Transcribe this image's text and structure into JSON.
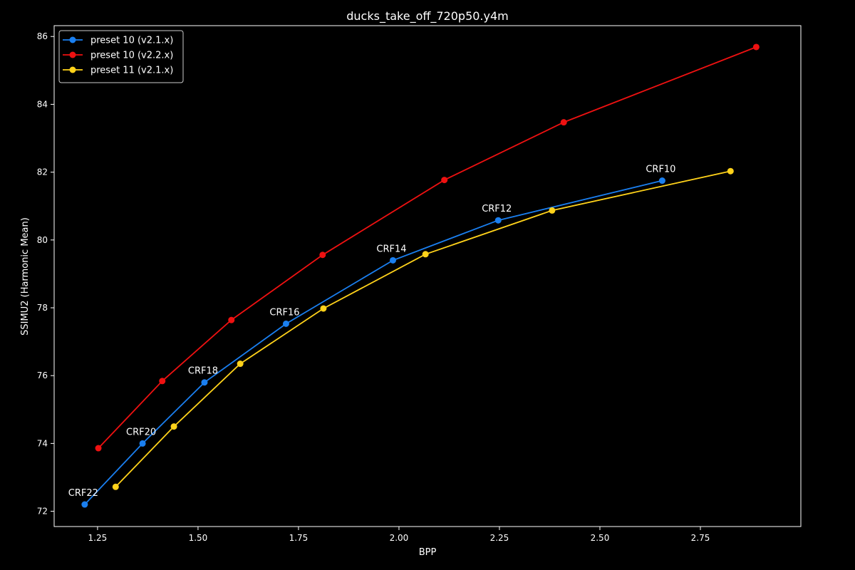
{
  "chart_data": {
    "type": "line",
    "title": "ducks_take_off_720p50.y4m",
    "xlabel": "BPP",
    "ylabel": "SSIMU2 (Harmonic Mean)",
    "xlim": [
      1.142,
      3.0
    ],
    "ylim": [
      71.55,
      86.32
    ],
    "xticks": [
      1.25,
      1.5,
      1.75,
      2.0,
      2.25,
      2.5,
      2.75
    ],
    "xtick_labels": [
      "1.25",
      "1.50",
      "1.75",
      "2.00",
      "2.25",
      "2.50",
      "2.75"
    ],
    "yticks": [
      72,
      74,
      76,
      78,
      80,
      82,
      84,
      86
    ],
    "ytick_labels": [
      "72",
      "74",
      "76",
      "78",
      "80",
      "82",
      "84",
      "86"
    ],
    "grid": false,
    "legend_position": "top-left",
    "background": "#000000",
    "foreground": "#ffffff",
    "series": [
      {
        "name": "preset 10 (v2.1.x)",
        "color": "#1a7ff0",
        "x": [
          1.218,
          1.362,
          1.516,
          1.719,
          1.985,
          2.247,
          2.655
        ],
        "y": [
          72.2,
          74.0,
          75.8,
          77.53,
          79.4,
          80.58,
          81.75
        ],
        "labels": [
          "CRF22",
          "CRF20",
          "CRF18",
          "CRF16",
          "CRF14",
          "CRF12",
          "CRF10"
        ]
      },
      {
        "name": "preset 10 (v2.2.x)",
        "color": "#ee1111",
        "x": [
          1.252,
          1.411,
          1.583,
          1.81,
          2.113,
          2.41,
          2.889
        ],
        "y": [
          73.86,
          75.84,
          77.64,
          79.56,
          81.77,
          83.47,
          85.69
        ]
      },
      {
        "name": "preset 11 (v2.1.x)",
        "color": "#ffd21a",
        "x": [
          1.295,
          1.44,
          1.605,
          1.812,
          2.066,
          2.381,
          2.825
        ],
        "y": [
          72.72,
          74.5,
          76.35,
          77.98,
          79.58,
          80.87,
          82.03
        ]
      }
    ]
  }
}
